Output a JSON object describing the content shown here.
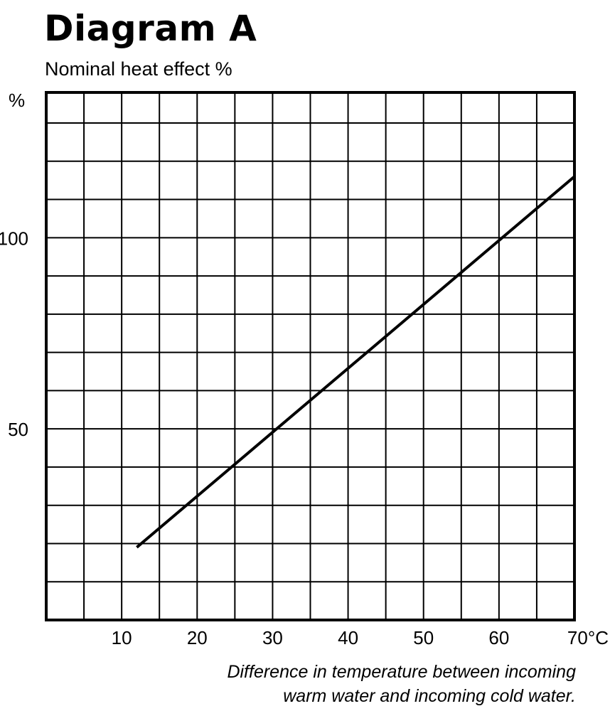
{
  "chart_data": {
    "type": "line",
    "title": "Diagram A",
    "subtitle": "Nominal heat effect %",
    "ylabel": "%",
    "xlabel_lines": [
      "Difference in temperature between incoming",
      "warm water and incoming cold water."
    ],
    "xlim": [
      0,
      70
    ],
    "ylim": [
      0,
      138
    ],
    "x_ticks": [
      10,
      20,
      30,
      40,
      50,
      60
    ],
    "x_tick_labels": [
      "10",
      "20",
      "30",
      "40",
      "50",
      "60"
    ],
    "x_end_label": "70°C",
    "y_ticks": [
      50,
      100
    ],
    "y_tick_labels": [
      "50",
      "100"
    ],
    "grid": true,
    "grid_x_step": 5,
    "grid_y_step": 10,
    "series": [
      {
        "x": [
          12,
          70
        ],
        "y": [
          19,
          116
        ]
      }
    ]
  }
}
